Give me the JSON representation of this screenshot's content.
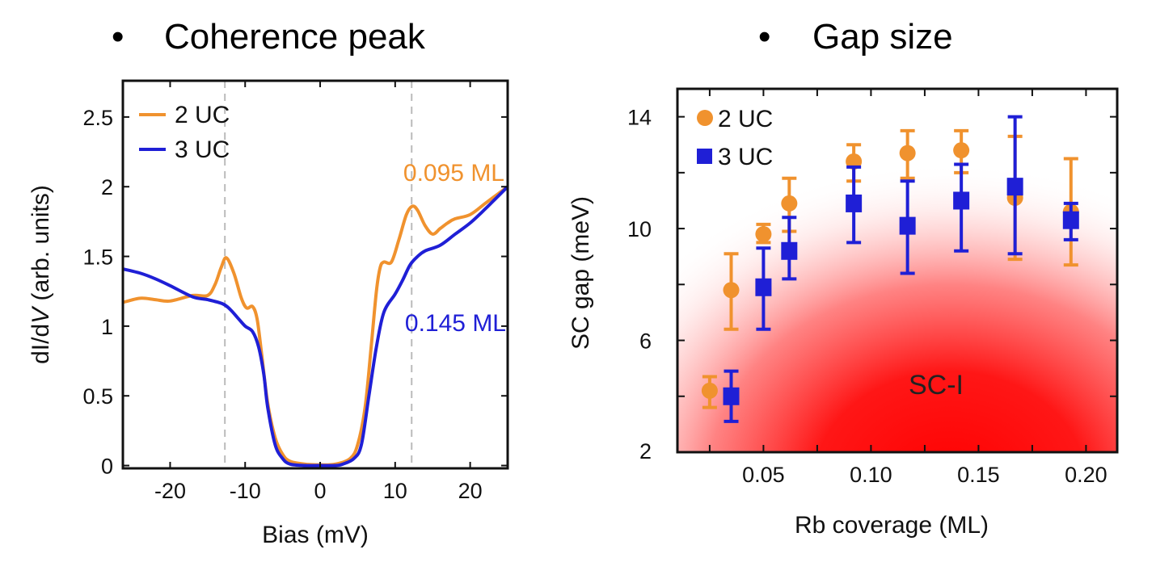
{
  "slide": {
    "bullet": "•",
    "left_heading": "Coherence peak",
    "right_heading": "Gap size"
  },
  "colors": {
    "orange": "#f0922e",
    "blue": "#1f1fd6",
    "red_region": "#ff0000",
    "dashed": "#bbbbbb"
  },
  "chart_data": [
    {
      "type": "line",
      "title": "",
      "xlabel": "Bias (mV)",
      "ylabel_prefix": "dI/d",
      "ylabel_italic": "V",
      "ylabel_suffix": " (arb. units)",
      "xlim": [
        -26.3,
        25
      ],
      "ylim": [
        -0.02,
        2.76
      ],
      "xticks": [
        -20,
        -10,
        0,
        10,
        20
      ],
      "xtick_labels": [
        "-20",
        "-10",
        "0",
        "10",
        "20"
      ],
      "yticks": [
        0,
        0.5,
        1,
        1.5,
        2,
        2.5
      ],
      "ytick_labels": [
        "0",
        "0.5",
        "1",
        "1.5",
        "2",
        "2.5"
      ],
      "grid": false,
      "legend_placement": "top-left",
      "vlines_dashed": [
        -12.7,
        12.2
      ],
      "annotations": [
        {
          "text": "0.095 ML",
          "color": "#f0922e"
        },
        {
          "text": "0.145 ML",
          "color": "#1f1fd6"
        }
      ],
      "series": [
        {
          "name": "2 UC",
          "color": "#f0922e",
          "x": [
            -26.3,
            -24,
            -22,
            -20,
            -17,
            -15,
            -14,
            -13.2,
            -12.5,
            -11.5,
            -10.5,
            -9.8,
            -9,
            -8.4,
            -7.8,
            -7,
            -6,
            -5,
            -4,
            -2,
            0,
            2,
            4,
            5,
            6,
            6.8,
            7.5,
            8,
            8.5,
            9.5,
            10.5,
            11.5,
            12.3,
            13,
            14,
            15,
            16,
            17,
            18,
            20,
            22,
            23.5,
            25
          ],
          "y": [
            1.17,
            1.2,
            1.19,
            1.18,
            1.22,
            1.22,
            1.3,
            1.42,
            1.49,
            1.38,
            1.2,
            1.13,
            1.14,
            1.05,
            0.8,
            0.45,
            0.2,
            0.08,
            0.03,
            0.01,
            0.005,
            0.01,
            0.05,
            0.15,
            0.42,
            0.85,
            1.25,
            1.42,
            1.46,
            1.46,
            1.62,
            1.8,
            1.86,
            1.83,
            1.72,
            1.66,
            1.7,
            1.74,
            1.77,
            1.8,
            1.88,
            1.94,
            2.0
          ]
        },
        {
          "name": "3 UC",
          "color": "#1f1fd6",
          "x": [
            -26.3,
            -24,
            -22,
            -20,
            -17,
            -15,
            -13,
            -12,
            -11,
            -10,
            -9,
            -8.2,
            -7.5,
            -7,
            -6,
            -5,
            -4,
            -2,
            0,
            2,
            3,
            4.5,
            5.5,
            6.5,
            7.5,
            8.5,
            10,
            11,
            12,
            13,
            14,
            16,
            18,
            20,
            22,
            23.5,
            25
          ],
          "y": [
            1.41,
            1.38,
            1.34,
            1.29,
            1.21,
            1.19,
            1.16,
            1.12,
            1.06,
            1.0,
            0.96,
            0.85,
            0.65,
            0.42,
            0.15,
            0.05,
            0.01,
            0.0,
            0.0,
            0.0,
            0.01,
            0.05,
            0.15,
            0.5,
            0.85,
            1.1,
            1.23,
            1.33,
            1.44,
            1.5,
            1.54,
            1.58,
            1.66,
            1.74,
            1.84,
            1.92,
            2.0
          ]
        }
      ]
    },
    {
      "type": "scatter",
      "title": "",
      "xlabel": "Rb coverage (ML)",
      "ylabel": "SC gap (meV)",
      "xlim": [
        0.01,
        0.2145
      ],
      "ylim": [
        2,
        15
      ],
      "xticks": [
        0.05,
        0.1,
        0.15,
        0.2
      ],
      "xtick_labels": [
        "0.05",
        "0.10",
        "0.15",
        "0.20"
      ],
      "xminor_ticks": [
        0.025,
        0.075,
        0.125,
        0.175
      ],
      "yticks": [
        2,
        6,
        10,
        14
      ],
      "ytick_labels": [
        "2",
        "6",
        "10",
        "14"
      ],
      "yminor_ticks": [
        4,
        8,
        12
      ],
      "grid": false,
      "legend_placement": "top-left",
      "region_label": "SC-I",
      "series": [
        {
          "name": "2 UC",
          "marker": "circle",
          "color": "#f0922e",
          "points": [
            {
              "x": 0.025,
              "y": 4.2,
              "hi": 4.7,
              "lo": 3.6
            },
            {
              "x": 0.035,
              "y": 7.8,
              "hi": 9.1,
              "lo": 6.4
            },
            {
              "x": 0.05,
              "y": 9.8,
              "hi": 10.15,
              "lo": 9.5
            },
            {
              "x": 0.062,
              "y": 10.9,
              "hi": 11.8,
              "lo": 9.9
            },
            {
              "x": 0.092,
              "y": 12.4,
              "hi": 13.0,
              "lo": 11.7
            },
            {
              "x": 0.117,
              "y": 12.7,
              "hi": 13.5,
              "lo": 11.8
            },
            {
              "x": 0.142,
              "y": 12.8,
              "hi": 13.5,
              "lo": 12.0
            },
            {
              "x": 0.167,
              "y": 11.1,
              "hi": 13.3,
              "lo": 8.9
            },
            {
              "x": 0.193,
              "y": 10.6,
              "hi": 12.5,
              "lo": 8.7
            }
          ]
        },
        {
          "name": "3 UC",
          "marker": "square",
          "color": "#1f1fd6",
          "points": [
            {
              "x": 0.035,
              "y": 4.0,
              "hi": 4.9,
              "lo": 3.1
            },
            {
              "x": 0.05,
              "y": 7.9,
              "hi": 9.3,
              "lo": 6.4
            },
            {
              "x": 0.062,
              "y": 9.2,
              "hi": 10.4,
              "lo": 8.2
            },
            {
              "x": 0.092,
              "y": 10.9,
              "hi": 12.2,
              "lo": 9.5
            },
            {
              "x": 0.117,
              "y": 10.1,
              "hi": 11.7,
              "lo": 8.4
            },
            {
              "x": 0.142,
              "y": 11.0,
              "hi": 12.3,
              "lo": 9.2
            },
            {
              "x": 0.167,
              "y": 11.5,
              "hi": 14.0,
              "lo": 9.1
            },
            {
              "x": 0.193,
              "y": 10.3,
              "hi": 10.9,
              "lo": 9.6
            }
          ]
        }
      ]
    }
  ]
}
